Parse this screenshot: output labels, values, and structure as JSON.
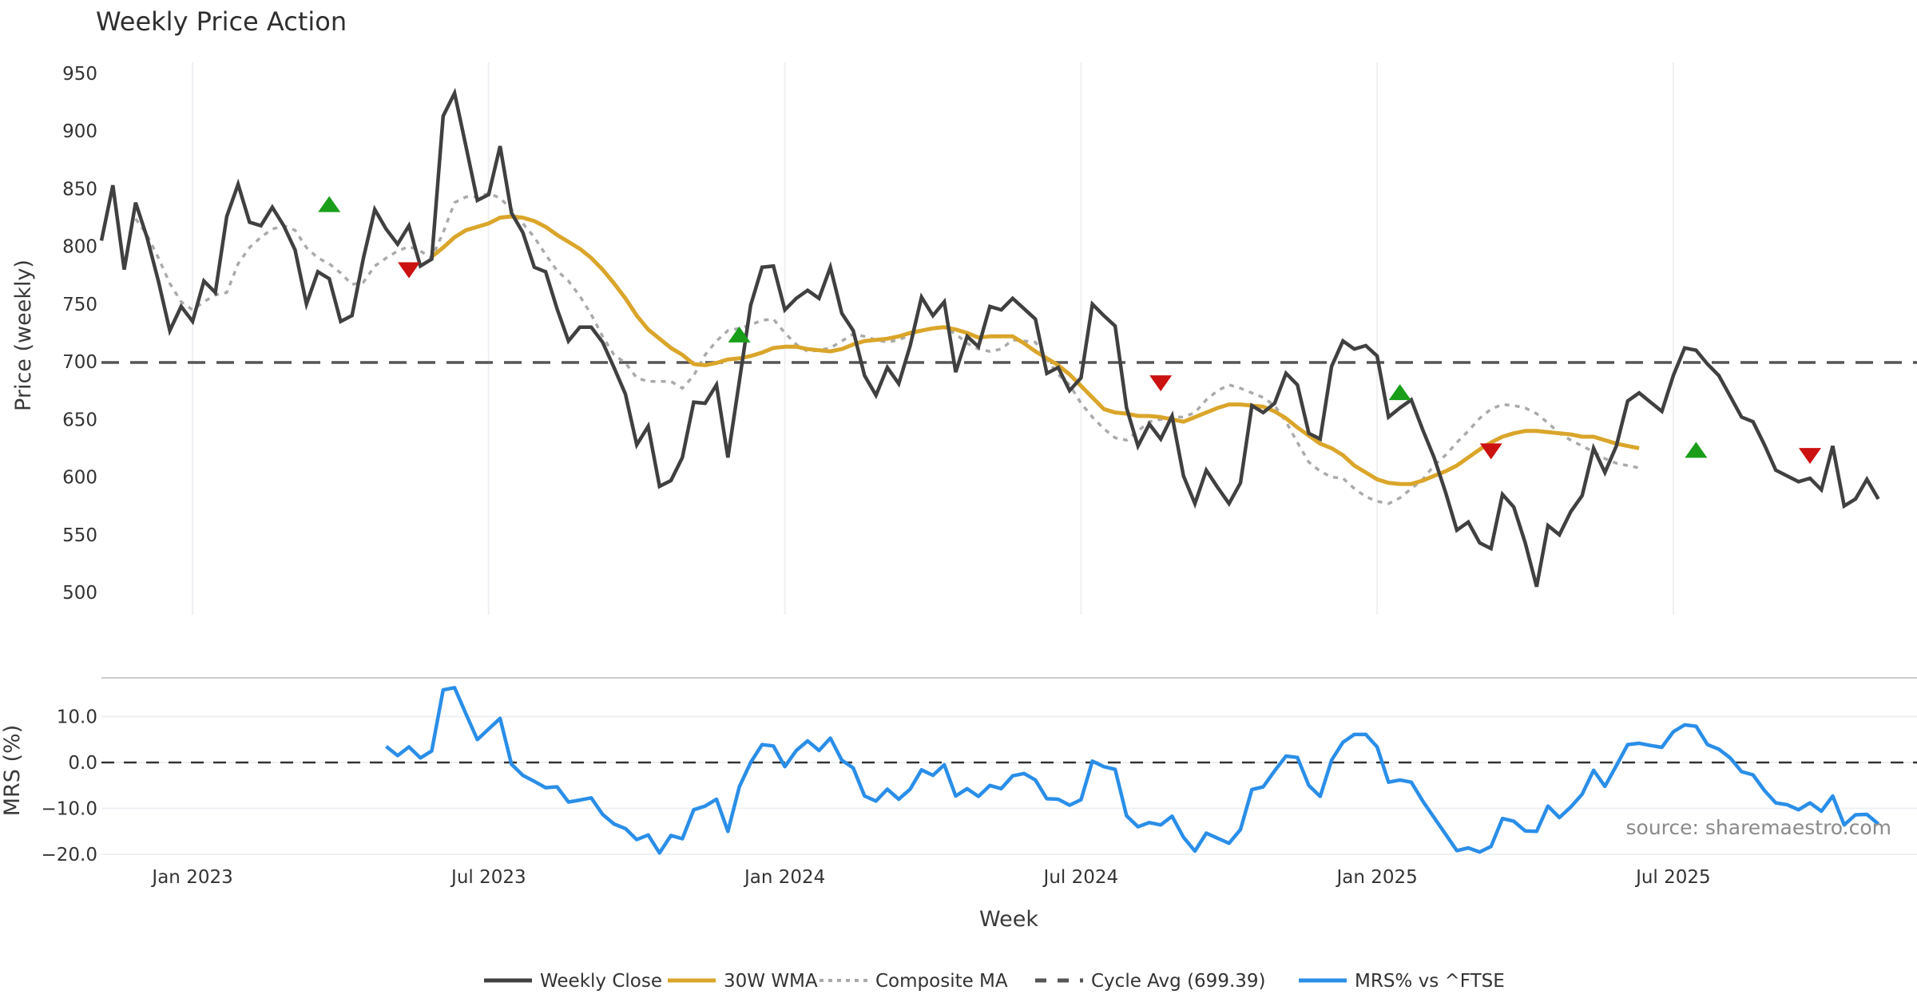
{
  "chart_data": [
    {
      "type": "line",
      "title": "Weekly Price Action",
      "xlabel": "Week",
      "ylabel": "Price (weekly)",
      "ylim": [
        490,
        960
      ],
      "yticks": [
        500,
        550,
        600,
        650,
        700,
        750,
        800,
        850,
        900,
        950
      ],
      "xticks": [
        "Jan 2023",
        "Jul 2023",
        "Jan 2024",
        "Jul 2024",
        "Jan 2025",
        "Jul 2025"
      ],
      "xtick_weeks": [
        8,
        34,
        60,
        86,
        112,
        138
      ],
      "grid": "vertical",
      "cycle_avg": 699.39,
      "series": [
        {
          "name": "Weekly Close",
          "color": "#404040",
          "start_week": 0,
          "values": [
            805,
            853,
            780,
            838,
            808,
            770,
            727,
            748,
            735,
            770,
            760,
            826,
            854,
            821,
            818,
            834,
            818,
            797,
            750,
            778,
            772,
            735,
            740,
            790,
            832,
            815,
            802,
            818,
            783,
            789,
            913,
            933,
            887,
            840,
            845,
            887,
            829,
            812,
            782,
            778,
            746,
            718,
            730,
            730,
            717,
            695,
            672,
            628,
            644,
            592,
            597,
            617,
            665,
            664,
            680,
            617,
            683,
            749,
            782,
            783,
            745,
            755,
            762,
            755,
            782,
            742,
            727,
            688,
            671,
            695,
            681,
            714,
            756,
            740,
            752,
            691,
            722,
            713,
            748,
            745,
            755,
            746,
            737,
            690,
            695,
            675,
            686,
            750,
            740,
            731,
            660,
            627,
            646,
            633,
            653,
            601,
            577,
            606,
            591,
            577,
            595,
            662,
            656,
            664,
            690,
            680,
            638,
            633,
            696,
            718,
            711,
            714,
            705,
            652,
            660,
            667,
            641,
            617,
            587,
            554,
            561,
            543,
            538,
            585,
            574,
            543,
            505,
            558,
            550,
            570,
            584,
            625,
            604,
            627,
            666,
            673,
            665,
            657,
            688,
            712,
            710,
            698,
            688,
            670,
            652,
            648,
            628,
            606,
            601,
            596,
            599,
            589,
            627,
            575,
            581,
            598,
            581
          ]
        },
        {
          "name": "30W WMA",
          "color": "#DAA52A",
          "start_week": 29,
          "values": [
            791,
            799,
            808,
            814,
            817,
            820,
            825,
            826,
            825,
            822,
            817,
            810,
            804,
            798,
            790,
            780,
            768,
            755,
            740,
            728,
            720,
            712,
            706,
            698,
            697,
            699,
            702,
            703,
            705,
            708,
            712,
            713,
            713,
            711,
            710,
            709,
            711,
            715,
            718,
            719,
            720,
            722,
            725,
            727,
            729,
            730,
            728,
            725,
            721,
            722,
            722,
            722,
            716,
            709,
            703,
            697,
            689,
            679,
            669,
            659,
            656,
            655,
            653,
            653,
            652,
            650,
            648,
            652,
            656,
            660,
            663,
            663,
            662,
            661,
            657,
            651,
            643,
            636,
            629,
            625,
            619,
            610,
            604,
            598,
            595,
            594,
            594,
            597,
            601,
            605,
            610,
            617,
            624,
            630,
            635,
            638,
            640,
            640,
            639,
            638,
            637,
            635,
            635,
            632,
            629,
            627,
            625
          ]
        },
        {
          "name": "Composite MA",
          "color": "#AAAAAA",
          "start_week": 3,
          "values": [
            824,
            810,
            790,
            768,
            752,
            745,
            752,
            758,
            760,
            785,
            799,
            808,
            815,
            818,
            814,
            799,
            790,
            785,
            777,
            767,
            769,
            783,
            790,
            796,
            800,
            796,
            790,
            812,
            838,
            843,
            843,
            846,
            842,
            832,
            820,
            808,
            793,
            779,
            770,
            757,
            741,
            722,
            706,
            699,
            686,
            683,
            683,
            683,
            677,
            688,
            706,
            718,
            727,
            729,
            732,
            736,
            737,
            725,
            715,
            709,
            710,
            712,
            718,
            724,
            722,
            719,
            717,
            719,
            723,
            727,
            729,
            730,
            724,
            716,
            711,
            709,
            711,
            719,
            718,
            717,
            702,
            689,
            680,
            664,
            652,
            642,
            634,
            632,
            640,
            648,
            650,
            652,
            652,
            656,
            667,
            675,
            680,
            677,
            673,
            669,
            662,
            648,
            630,
            613,
            605,
            600,
            599,
            590,
            583,
            579,
            577,
            582,
            590,
            598,
            610,
            619,
            630,
            640,
            651,
            659,
            663,
            662,
            660,
            655,
            647,
            638,
            632,
            627,
            622,
            616,
            612,
            610,
            608
          ]
        }
      ],
      "signals": [
        {
          "type": "buy",
          "week": 20,
          "value": 836
        },
        {
          "type": "sell",
          "week": 27,
          "value": 780
        },
        {
          "type": "buy",
          "week": 56,
          "value": 723
        },
        {
          "type": "sell",
          "week": 93,
          "value": 682
        },
        {
          "type": "buy",
          "week": 114,
          "value": 673
        },
        {
          "type": "sell",
          "week": 122,
          "value": 623
        },
        {
          "type": "buy",
          "week": 140,
          "value": 623
        },
        {
          "type": "sell",
          "week": 150,
          "value": 619
        }
      ]
    },
    {
      "type": "line",
      "xlabel": "Week",
      "ylabel": "MRS (%)",
      "ylim": [
        -21,
        18
      ],
      "yticks": [
        -20.0,
        -10.0,
        0.0,
        10.0
      ],
      "ytick_labels": [
        "−20.0",
        "−10.0",
        "0.0",
        "10.0"
      ],
      "zero_line": 0,
      "series": [
        {
          "name": "MRS% vs ^FTSE",
          "color": "#2A8EE8",
          "start_week": 25,
          "values": [
            3.5,
            1.5,
            3.4,
            1.0,
            2.5,
            15.8,
            16.3,
            10.6,
            5.0,
            7.3,
            9.6,
            -0.4,
            -2.8,
            -4.1,
            -5.5,
            -5.3,
            -8.6,
            -8.2,
            -7.7,
            -11.3,
            -13.4,
            -14.4,
            -16.8,
            -15.8,
            -19.7,
            -15.9,
            -16.6,
            -10.3,
            -9.5,
            -8.0,
            -15.0,
            -5.3,
            0.0,
            3.9,
            3.6,
            -0.9,
            2.6,
            4.7,
            2.6,
            5.3,
            0.5,
            -1.2,
            -7.3,
            -8.4,
            -5.8,
            -8.0,
            -5.8,
            -1.6,
            -2.8,
            -0.5,
            -7.3,
            -5.7,
            -7.4,
            -5.0,
            -5.7,
            -2.9,
            -2.4,
            -3.8,
            -7.9,
            -8.0,
            -9.3,
            -8.1,
            0.3,
            -0.9,
            -1.5,
            -11.6,
            -14.0,
            -13.1,
            -13.6,
            -11.7,
            -16.3,
            -19.3,
            -15.4,
            -16.5,
            -17.6,
            -14.6,
            -5.9,
            -5.3,
            -1.8,
            1.4,
            1.1,
            -5.0,
            -7.4,
            0.5,
            4.4,
            6.1,
            6.1,
            3.4,
            -4.3,
            -3.8,
            -4.3,
            -8.4,
            -12.0,
            -15.6,
            -19.2,
            -18.6,
            -19.5,
            -18.3,
            -12.2,
            -12.8,
            -14.9,
            -15.0,
            -9.5,
            -12.0,
            -9.7,
            -6.9,
            -1.7,
            -5.2,
            -0.7,
            3.9,
            4.2,
            3.7,
            3.3,
            6.7,
            8.2,
            7.9,
            3.9,
            2.9,
            1.0,
            -2.0,
            -2.7,
            -6.1,
            -8.8,
            -9.2,
            -10.3,
            -8.8,
            -10.6,
            -7.3,
            -13.6,
            -11.4,
            -11.3,
            -13.4
          ]
        }
      ]
    }
  ],
  "legend": {
    "placement": "bottom-center",
    "items": [
      {
        "label": "Weekly Close",
        "color": "#404040",
        "style": "solid"
      },
      {
        "label": "30W WMA",
        "color": "#DAA52A",
        "style": "solid"
      },
      {
        "label": "Composite MA",
        "color": "#AAAAAA",
        "style": "dotted"
      },
      {
        "label": "Cycle Avg (699.39)",
        "color": "#555555",
        "style": "dashed"
      },
      {
        "label": "MRS% vs ^FTSE",
        "color": "#2A8EE8",
        "style": "solid"
      }
    ]
  },
  "annotation": {
    "source": "source: sharemaestro.com"
  }
}
